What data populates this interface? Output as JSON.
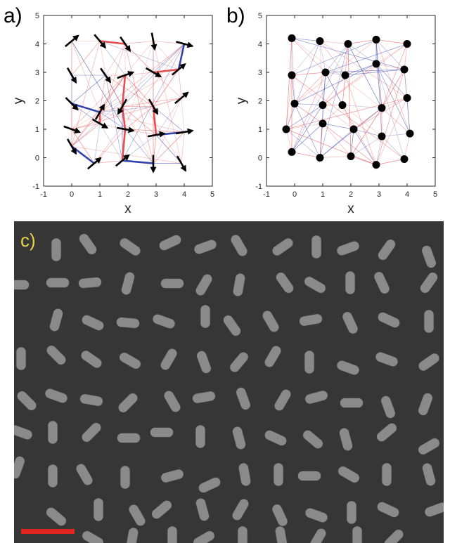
{
  "figure": {
    "panels": [
      {
        "id": "a",
        "label": "a)"
      },
      {
        "id": "b",
        "label": "b)"
      },
      {
        "id": "c",
        "label": "c)"
      }
    ]
  },
  "colors": {
    "label_c": "#e8d54a",
    "scale_bar": "#e2261f",
    "line_red": "#e3454a",
    "line_blue": "#2a3aa8",
    "sem_background": "#363636",
    "rod": "#8a8a8a"
  },
  "chart_data": [
    {
      "panel": "a",
      "type": "scatter",
      "xlabel": "x",
      "ylabel": "y",
      "xlim": [
        -1,
        5
      ],
      "ylim": [
        -1,
        5
      ],
      "xticks": [
        -1,
        0,
        1,
        2,
        3,
        4,
        5
      ],
      "yticks": [
        -1,
        0,
        1,
        2,
        3,
        4,
        5
      ],
      "marker": "arrow",
      "points": [
        {
          "x": 0.0,
          "y": 4.1,
          "angle": 40
        },
        {
          "x": 1.0,
          "y": 4.1,
          "angle": -50
        },
        {
          "x": 1.9,
          "y": 4.0,
          "angle": -55
        },
        {
          "x": 2.9,
          "y": 4.1,
          "angle": -80
        },
        {
          "x": 4.0,
          "y": 4.0,
          "angle": -15
        },
        {
          "x": 0.0,
          "y": 2.9,
          "angle": -60
        },
        {
          "x": 1.2,
          "y": 2.9,
          "angle": -55
        },
        {
          "x": 1.9,
          "y": 2.9,
          "angle": 20
        },
        {
          "x": 2.9,
          "y": 3.0,
          "angle": -30
        },
        {
          "x": 3.8,
          "y": 3.1,
          "angle": 40
        },
        {
          "x": 0.0,
          "y": 1.9,
          "angle": -45
        },
        {
          "x": 1.0,
          "y": 1.6,
          "angle": 60
        },
        {
          "x": 1.8,
          "y": 1.8,
          "angle": -120
        },
        {
          "x": 2.9,
          "y": 1.8,
          "angle": -60
        },
        {
          "x": 3.9,
          "y": 2.1,
          "angle": 40
        },
        {
          "x": 0.0,
          "y": 1.0,
          "angle": -20
        },
        {
          "x": 1.0,
          "y": 1.2,
          "angle": -30
        },
        {
          "x": 1.9,
          "y": 1.0,
          "angle": -10
        },
        {
          "x": 3.0,
          "y": 0.8,
          "angle": 10
        },
        {
          "x": 4.0,
          "y": 0.9,
          "angle": 10
        },
        {
          "x": 0.0,
          "y": 0.4,
          "angle": -60
        },
        {
          "x": 0.8,
          "y": -0.2,
          "angle": 40
        },
        {
          "x": 1.8,
          "y": -0.1,
          "angle": 40
        },
        {
          "x": 2.9,
          "y": -0.2,
          "angle": -90
        },
        {
          "x": 3.9,
          "y": -0.2,
          "angle": -60
        }
      ]
    },
    {
      "panel": "b",
      "type": "scatter",
      "xlabel": "x",
      "ylabel": "y",
      "xlim": [
        -1,
        5
      ],
      "ylim": [
        -1,
        5
      ],
      "xticks": [
        -1,
        0,
        1,
        2,
        3,
        4,
        5
      ],
      "yticks": [
        -1,
        0,
        1,
        2,
        3,
        4,
        5
      ],
      "marker": "dot",
      "points": [
        {
          "x": -0.1,
          "y": 4.2
        },
        {
          "x": 0.9,
          "y": 4.1
        },
        {
          "x": 1.9,
          "y": 4.0
        },
        {
          "x": 2.9,
          "y": 4.15
        },
        {
          "x": 4.0,
          "y": 4.0
        },
        {
          "x": -0.1,
          "y": 2.9
        },
        {
          "x": 1.1,
          "y": 3.0
        },
        {
          "x": 1.8,
          "y": 2.9
        },
        {
          "x": 2.9,
          "y": 3.3
        },
        {
          "x": 3.9,
          "y": 3.1
        },
        {
          "x": 0.0,
          "y": 1.9
        },
        {
          "x": 1.0,
          "y": 1.85
        },
        {
          "x": 1.7,
          "y": 1.85
        },
        {
          "x": 3.1,
          "y": 1.75
        },
        {
          "x": 4.0,
          "y": 2.1
        },
        {
          "x": -0.3,
          "y": 1.0
        },
        {
          "x": 1.0,
          "y": 1.2
        },
        {
          "x": 2.1,
          "y": 1.0
        },
        {
          "x": 3.1,
          "y": 0.75
        },
        {
          "x": 4.1,
          "y": 0.85
        },
        {
          "x": -0.1,
          "y": 0.2
        },
        {
          "x": 0.9,
          "y": 0.0
        },
        {
          "x": 2.0,
          "y": 0.05
        },
        {
          "x": 2.9,
          "y": -0.25
        },
        {
          "x": 3.9,
          "y": -0.05
        }
      ]
    }
  ],
  "sem_rods": [
    {
      "x": 60,
      "y": 40,
      "a": 90
    },
    {
      "x": 105,
      "y": 32,
      "a": -55
    },
    {
      "x": 165,
      "y": 36,
      "a": -35
    },
    {
      "x": 222,
      "y": 30,
      "a": 25
    },
    {
      "x": 272,
      "y": 36,
      "a": 20
    },
    {
      "x": 320,
      "y": 34,
      "a": -60
    },
    {
      "x": 382,
      "y": 36,
      "a": 35
    },
    {
      "x": 430,
      "y": 36,
      "a": 90
    },
    {
      "x": 475,
      "y": 38,
      "a": 20
    },
    {
      "x": 530,
      "y": 40,
      "a": 55
    },
    {
      "x": 590,
      "y": 50,
      "a": -70
    },
    {
      "x": 5,
      "y": 90,
      "a": 0
    },
    {
      "x": 62,
      "y": 87,
      "a": 0
    },
    {
      "x": 108,
      "y": 87,
      "a": 5
    },
    {
      "x": 162,
      "y": 88,
      "a": 75
    },
    {
      "x": 225,
      "y": 88,
      "a": 0
    },
    {
      "x": 270,
      "y": 90,
      "a": 60
    },
    {
      "x": 320,
      "y": 90,
      "a": 80
    },
    {
      "x": 385,
      "y": 87,
      "a": -55
    },
    {
      "x": 428,
      "y": 90,
      "a": -30
    },
    {
      "x": 478,
      "y": 87,
      "a": 90
    },
    {
      "x": 523,
      "y": 87,
      "a": -65
    },
    {
      "x": 590,
      "y": 87,
      "a": 55
    },
    {
      "x": 60,
      "y": 140,
      "a": 75
    },
    {
      "x": 112,
      "y": 144,
      "a": -25
    },
    {
      "x": 162,
      "y": 144,
      "a": -5
    },
    {
      "x": 213,
      "y": 142,
      "a": -20
    },
    {
      "x": 272,
      "y": 135,
      "a": 90
    },
    {
      "x": 310,
      "y": 148,
      "a": -55
    },
    {
      "x": 365,
      "y": 142,
      "a": -60
    },
    {
      "x": 422,
      "y": 140,
      "a": 10
    },
    {
      "x": 478,
      "y": 144,
      "a": -65
    },
    {
      "x": 533,
      "y": 140,
      "a": -25
    },
    {
      "x": 590,
      "y": 142,
      "a": 90
    },
    {
      "x": 10,
      "y": 195,
      "a": 90
    },
    {
      "x": 60,
      "y": 190,
      "a": -45
    },
    {
      "x": 110,
      "y": 196,
      "a": -35
    },
    {
      "x": 165,
      "y": 198,
      "a": -30
    },
    {
      "x": 220,
      "y": 196,
      "a": 60
    },
    {
      "x": 270,
      "y": 200,
      "a": -70
    },
    {
      "x": 320,
      "y": 200,
      "a": 50
    },
    {
      "x": 368,
      "y": 192,
      "a": 60
    },
    {
      "x": 420,
      "y": 200,
      "a": 90
    },
    {
      "x": 475,
      "y": 208,
      "a": -20
    },
    {
      "x": 530,
      "y": 196,
      "a": -20
    },
    {
      "x": 590,
      "y": 200,
      "a": 35
    },
    {
      "x": 18,
      "y": 255,
      "a": -45
    },
    {
      "x": 60,
      "y": 248,
      "a": -20
    },
    {
      "x": 110,
      "y": 254,
      "a": -10
    },
    {
      "x": 162,
      "y": 258,
      "a": 45
    },
    {
      "x": 225,
      "y": 256,
      "a": -60
    },
    {
      "x": 270,
      "y": 250,
      "a": 10
    },
    {
      "x": 326,
      "y": 252,
      "a": -70
    },
    {
      "x": 382,
      "y": 254,
      "a": 60
    },
    {
      "x": 430,
      "y": 250,
      "a": 15
    },
    {
      "x": 480,
      "y": 258,
      "a": 0
    },
    {
      "x": 532,
      "y": 264,
      "a": -70
    },
    {
      "x": 585,
      "y": 260,
      "a": 70
    },
    {
      "x": 10,
      "y": 300,
      "a": -20
    },
    {
      "x": 55,
      "y": 300,
      "a": 90
    },
    {
      "x": 110,
      "y": 300,
      "a": 45
    },
    {
      "x": 163,
      "y": 308,
      "a": 0
    },
    {
      "x": 210,
      "y": 300,
      "a": 0
    },
    {
      "x": 265,
      "y": 306,
      "a": 90
    },
    {
      "x": 320,
      "y": 308,
      "a": -75
    },
    {
      "x": 372,
      "y": 308,
      "a": -25
    },
    {
      "x": 425,
      "y": 310,
      "a": -40
    },
    {
      "x": 472,
      "y": 310,
      "a": -75
    },
    {
      "x": 530,
      "y": 300,
      "a": 40
    },
    {
      "x": 590,
      "y": 320,
      "a": 30
    },
    {
      "x": 5,
      "y": 350,
      "a": 70
    },
    {
      "x": 55,
      "y": 362,
      "a": 90
    },
    {
      "x": 100,
      "y": 360,
      "a": -60
    },
    {
      "x": 158,
      "y": 364,
      "a": 90
    },
    {
      "x": 225,
      "y": 362,
      "a": 15
    },
    {
      "x": 278,
      "y": 375,
      "a": 25
    },
    {
      "x": 328,
      "y": 360,
      "a": -80
    },
    {
      "x": 376,
      "y": 360,
      "a": 90
    },
    {
      "x": 420,
      "y": 362,
      "a": 0
    },
    {
      "x": 476,
      "y": 360,
      "a": -30
    },
    {
      "x": 530,
      "y": 360,
      "a": 90
    },
    {
      "x": 590,
      "y": 360,
      "a": -75
    },
    {
      "x": 60,
      "y": 420,
      "a": -40
    },
    {
      "x": 120,
      "y": 410,
      "a": 90
    },
    {
      "x": 175,
      "y": 418,
      "a": -60
    },
    {
      "x": 210,
      "y": 410,
      "a": 40
    },
    {
      "x": 268,
      "y": 410,
      "a": -75
    },
    {
      "x": 322,
      "y": 410,
      "a": 60
    },
    {
      "x": 378,
      "y": 418,
      "a": -65
    },
    {
      "x": 430,
      "y": 418,
      "a": -20
    },
    {
      "x": 480,
      "y": 414,
      "a": 90
    },
    {
      "x": 532,
      "y": 410,
      "a": -25
    },
    {
      "x": 600,
      "y": 410,
      "a": 20
    },
    {
      "x": 112,
      "y": 452,
      "a": -30
    },
    {
      "x": 168,
      "y": 452,
      "a": 80
    },
    {
      "x": 225,
      "y": 450,
      "a": 90
    },
    {
      "x": 270,
      "y": 452,
      "a": 30
    },
    {
      "x": 325,
      "y": 450,
      "a": 90
    },
    {
      "x": 380,
      "y": 450,
      "a": -80
    },
    {
      "x": 432,
      "y": 452,
      "a": 60
    },
    {
      "x": 488,
      "y": 450,
      "a": 90
    },
    {
      "x": 540,
      "y": 452,
      "a": 45
    }
  ]
}
